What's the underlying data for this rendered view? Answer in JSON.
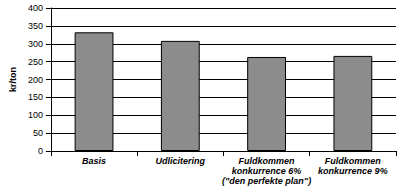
{
  "chart_data": {
    "type": "bar",
    "y_label": "kr/ton",
    "categories": [
      "Basis",
      "Udlicitering",
      "Fuldkommen\nkonkurrence 6%\n(\"den perfekte plan\")",
      "Fuldkommen\nkonkurrence 9%"
    ],
    "values": [
      332,
      308,
      263,
      266
    ],
    "color": "#8c8c8c",
    "ylim": [
      0,
      400
    ],
    "yticks": [
      0,
      50,
      100,
      150,
      200,
      250,
      300,
      350,
      400
    ],
    "grid": true
  }
}
